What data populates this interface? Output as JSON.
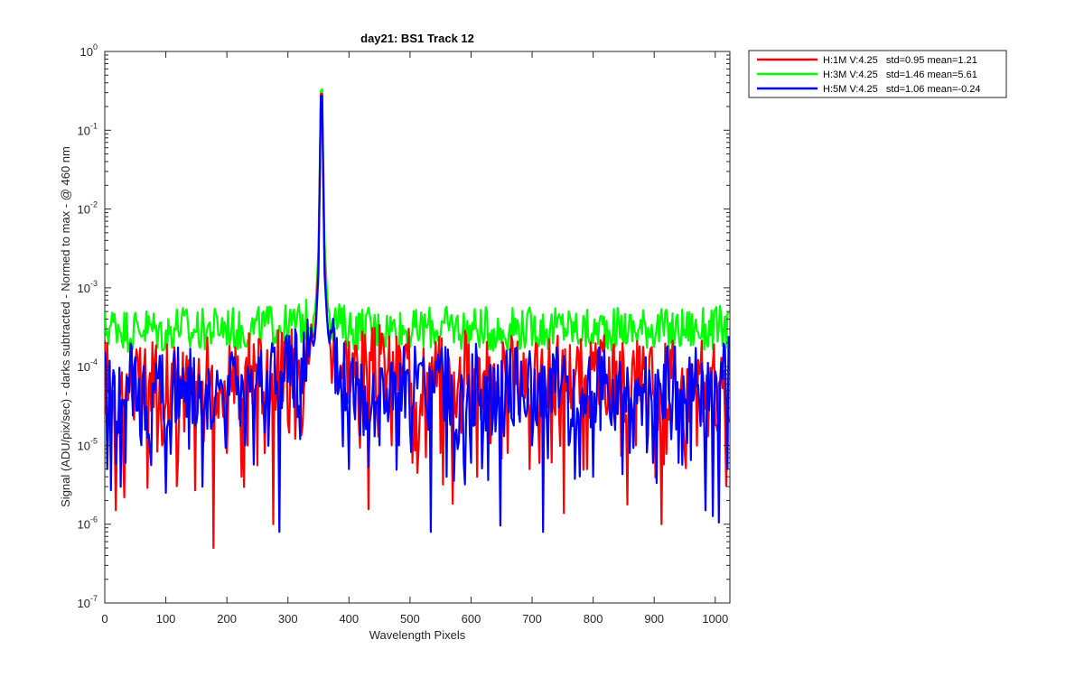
{
  "chart_data": {
    "type": "line",
    "title": "day21: BS1  Track 12",
    "xlabel": "Wavelength Pixels",
    "ylabel": "Signal (ADU/pix/sec) - darks subtracted - Normed to max - @ 460 nm",
    "xlim": [
      0,
      1024
    ],
    "ylim": [
      1e-07,
      1
    ],
    "yscale": "log",
    "x_ticks": [
      0,
      100,
      200,
      300,
      400,
      500,
      600,
      700,
      800,
      900,
      1000
    ],
    "y_ticks": [
      {
        "value": 1e-07,
        "base": "10",
        "exp": "-7"
      },
      {
        "value": 1e-06,
        "base": "10",
        "exp": "-6"
      },
      {
        "value": 1e-05,
        "base": "10",
        "exp": "-5"
      },
      {
        "value": 0.0001,
        "base": "10",
        "exp": "-4"
      },
      {
        "value": 0.001,
        "base": "10",
        "exp": "-3"
      },
      {
        "value": 0.01,
        "base": "10",
        "exp": "-2"
      },
      {
        "value": 0.1,
        "base": "10",
        "exp": "-1"
      },
      {
        "value": 1,
        "base": "10",
        "exp": "0"
      }
    ],
    "grid": false,
    "legend_position": "outside-top-right",
    "peak": {
      "x": 355,
      "y": 1.0
    },
    "series": [
      {
        "name": "H:1M V:4.25   std=0.95 mean=1.21",
        "color": "#ff0000",
        "baseline": 7e-05,
        "x": [
          0,
          20,
          40,
          60,
          80,
          100,
          120,
          140,
          160,
          180,
          200,
          220,
          240,
          260,
          280,
          300,
          320,
          340,
          345,
          350,
          355,
          360,
          365,
          370,
          390,
          410,
          430,
          450,
          470,
          490,
          510,
          530,
          550,
          570,
          590,
          610,
          630,
          650,
          670,
          690,
          710,
          730,
          750,
          770,
          790,
          810,
          830,
          850,
          870,
          890,
          910,
          930,
          950,
          970,
          990,
          1010,
          1023
        ],
        "y": [
          8e-05,
          4e-05,
          7e-05,
          5e-05,
          9e-05,
          6e-05,
          7e-05,
          5e-05,
          8e-05,
          6e-05,
          9e-05,
          7e-05,
          0.0001,
          8e-05,
          9e-05,
          0.0001,
          0.00013,
          0.0002,
          0.0003,
          0.002,
          1.0,
          0.002,
          0.0003,
          0.0002,
          0.00012,
          0.0001,
          9e-05,
          0.0001,
          8e-05,
          0.0001,
          7e-05,
          9e-05,
          8e-05,
          6e-05,
          9e-05,
          7e-05,
          6e-05,
          8e-05,
          7e-05,
          9e-05,
          6e-05,
          8e-05,
          7e-05,
          9e-05,
          6e-05,
          7e-05,
          8e-05,
          6e-05,
          9e-05,
          7e-05,
          6e-05,
          8e-05,
          5e-05,
          7e-05,
          6e-05,
          5e-05,
          7e-05
        ],
        "dips": [
          [
            18,
            1.5e-06
          ],
          [
            30,
            8e-06
          ],
          [
            60,
            2e-05
          ],
          [
            95,
            1e-05
          ],
          [
            130,
            1.5e-05
          ],
          [
            178,
            5e-07
          ],
          [
            200,
            8e-06
          ],
          [
            225,
            4e-06
          ],
          [
            277,
            1e-06
          ],
          [
            300,
            2e-05
          ],
          [
            470,
            1e-05
          ],
          [
            505,
            6e-06
          ],
          [
            550,
            8e-06
          ],
          [
            610,
            4e-06
          ],
          [
            660,
            8e-06
          ],
          [
            700,
            1.2e-05
          ],
          [
            790,
            5e-06
          ],
          [
            830,
            2e-05
          ],
          [
            870,
            1e-05
          ],
          [
            912,
            1e-06
          ],
          [
            950,
            8e-06
          ],
          [
            980,
            2e-05
          ],
          [
            1005,
            1.5e-05
          ]
        ]
      },
      {
        "name": "H:3M V:4.25   std=1.46 mean=5.61",
        "color": "#00ff00",
        "baseline": 0.0003,
        "x": [
          0,
          20,
          40,
          60,
          80,
          100,
          120,
          140,
          160,
          180,
          200,
          220,
          240,
          260,
          280,
          300,
          320,
          340,
          345,
          350,
          355,
          360,
          365,
          370,
          390,
          410,
          430,
          450,
          470,
          490,
          510,
          530,
          550,
          570,
          590,
          610,
          630,
          650,
          670,
          690,
          710,
          730,
          750,
          770,
          790,
          810,
          830,
          850,
          870,
          890,
          910,
          930,
          950,
          970,
          990,
          1010,
          1023
        ],
        "y": [
          0.0003,
          0.00035,
          0.00028,
          0.00032,
          0.0003,
          0.00026,
          0.00034,
          0.0003,
          0.00029,
          0.00031,
          0.00033,
          0.00028,
          0.0003,
          0.00032,
          0.00035,
          0.00031,
          0.00036,
          0.0004,
          0.0005,
          0.003,
          1.0,
          0.004,
          0.0006,
          0.0004,
          0.00033,
          0.0003,
          0.00032,
          0.00029,
          0.00031,
          0.0003,
          0.00028,
          0.00032,
          0.0003,
          0.00033,
          0.00029,
          0.00031,
          0.0003,
          0.00027,
          0.00032,
          0.0003,
          0.00031,
          0.00029,
          0.00033,
          0.0003,
          0.00028,
          0.00032,
          0.0003,
          0.00031,
          0.00029,
          0.00033,
          0.0003,
          0.00028,
          0.00031,
          0.0003,
          0.00029,
          0.00032,
          0.0003
        ],
        "dips": [
          [
            40,
            0.00019
          ],
          [
            103,
            0.00014
          ],
          [
            140,
            0.00018
          ],
          [
            200,
            0.00019
          ],
          [
            280,
            0.0002
          ],
          [
            480,
            0.00018
          ],
          [
            620,
            0.0002
          ],
          [
            800,
            0.0002
          ]
        ]
      },
      {
        "name": "H:5M V:4.25   std=1.06 mean=-0.24",
        "color": "#0000ff",
        "baseline": 5e-05,
        "x": [
          0,
          20,
          40,
          60,
          80,
          100,
          120,
          140,
          160,
          180,
          200,
          220,
          240,
          260,
          280,
          300,
          320,
          340,
          345,
          350,
          355,
          360,
          365,
          370,
          390,
          410,
          430,
          450,
          470,
          490,
          510,
          530,
          550,
          570,
          590,
          610,
          630,
          650,
          670,
          690,
          710,
          730,
          750,
          770,
          790,
          810,
          830,
          850,
          870,
          890,
          910,
          930,
          950,
          970,
          990,
          1010,
          1023
        ],
        "y": [
          5e-05,
          4e-05,
          6e-05,
          3e-05,
          5e-05,
          4e-05,
          6e-05,
          5e-05,
          4e-05,
          6e-05,
          5e-05,
          7e-05,
          6e-05,
          8e-05,
          7e-05,
          9e-05,
          0.00011,
          0.00015,
          0.00025,
          0.0015,
          1.0,
          0.0015,
          0.0003,
          0.00015,
          6e-05,
          5e-05,
          4e-05,
          5e-05,
          4e-05,
          6e-05,
          5e-05,
          4e-05,
          6e-05,
          5e-05,
          4e-05,
          6e-05,
          5e-05,
          4e-05,
          6e-05,
          5e-05,
          4e-05,
          6e-05,
          5e-05,
          4e-05,
          6e-05,
          5e-05,
          4e-05,
          5e-05,
          6e-05,
          4e-05,
          5e-05,
          6e-05,
          4e-05,
          5e-05,
          4e-05,
          6e-05,
          0.00012
        ],
        "dips": [
          [
            5,
            5e-06
          ],
          [
            35,
            6e-06
          ],
          [
            100,
            2.5e-06
          ],
          [
            160,
            3e-06
          ],
          [
            230,
            1e-05
          ],
          [
            287,
            8e-07
          ],
          [
            320,
            1.2e-05
          ],
          [
            400,
            5e-06
          ],
          [
            450,
            1e-05
          ],
          [
            483,
            1e-05
          ],
          [
            535,
            8e-07
          ],
          [
            560,
            4e-06
          ],
          [
            600,
            6e-06
          ],
          [
            640,
            1.5e-05
          ],
          [
            700,
            1e-05
          ],
          [
            718,
            8e-07
          ],
          [
            760,
            1e-05
          ],
          [
            800,
            4e-06
          ],
          [
            860,
            8e-06
          ],
          [
            940,
            6e-06
          ],
          [
            985,
            1.5e-06
          ],
          [
            1020,
            5e-06
          ]
        ]
      }
    ]
  }
}
